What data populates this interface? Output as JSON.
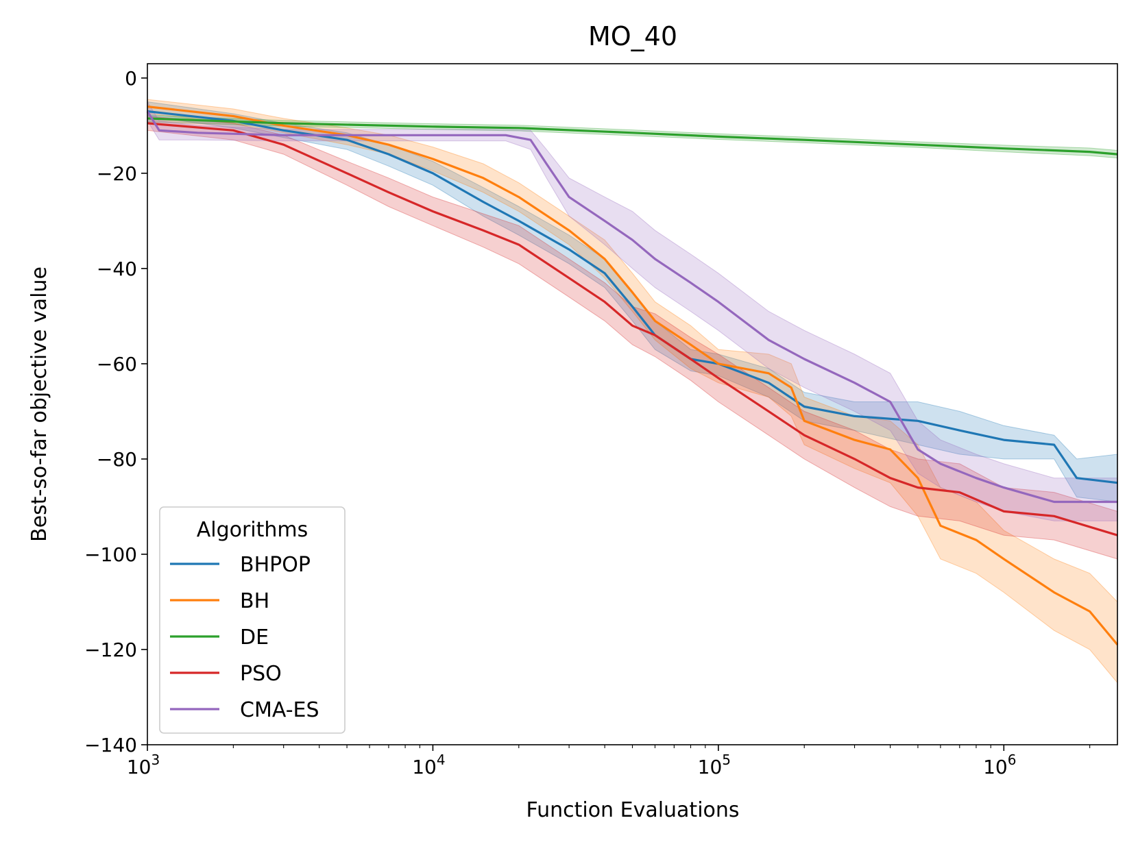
{
  "chart_data": {
    "type": "line",
    "title": "MO_40",
    "xlabel": "Function Evaluations",
    "ylabel": "Best-so-far objective value",
    "xscale": "log",
    "xlim": [
      1000,
      2500000
    ],
    "ylim": [
      -140,
      3
    ],
    "x_ticks": [
      {
        "value": 1000,
        "base": "10",
        "exp": "3"
      },
      {
        "value": 10000,
        "base": "10",
        "exp": "4"
      },
      {
        "value": 100000,
        "base": "10",
        "exp": "5"
      },
      {
        "value": 1000000,
        "base": "10",
        "exp": "6"
      }
    ],
    "y_ticks": [
      0,
      -20,
      -40,
      -60,
      -80,
      -100,
      -120,
      -140
    ],
    "y_tick_labels": [
      "0",
      "−20",
      "−40",
      "−60",
      "−80",
      "−100",
      "−120",
      "−140"
    ],
    "legend": {
      "title": "Algorithms",
      "position": "lower left"
    },
    "series": [
      {
        "name": "BHPOP",
        "color": "#1f77b4",
        "x": [
          1000,
          2000,
          3000,
          5000,
          7000,
          10000,
          15000,
          20000,
          30000,
          40000,
          50000,
          60000,
          80000,
          100000,
          150000,
          200000,
          300000,
          500000,
          700000,
          1000000,
          1500000,
          1800000,
          2500000
        ],
        "y": [
          -7,
          -9,
          -11,
          -13,
          -16,
          -20,
          -26,
          -30,
          -36,
          -41,
          -48,
          -54,
          -59,
          -60,
          -64,
          -69,
          -71,
          -72,
          -74,
          -76,
          -77,
          -84,
          -85
        ],
        "lower": [
          -8,
          -10.5,
          -12.5,
          -15,
          -18.5,
          -22.5,
          -29,
          -33,
          -39,
          -44,
          -51,
          -57,
          -61.5,
          -62.5,
          -67,
          -72,
          -74,
          -77,
          -79,
          -80,
          -80,
          -88,
          -89
        ],
        "upper": [
          -5,
          -7.5,
          -9.5,
          -11.5,
          -14,
          -17.5,
          -23,
          -27,
          -33,
          -38,
          -45,
          -51,
          -57,
          -58,
          -61,
          -66,
          -68,
          -68,
          -70,
          -73,
          -75,
          -80,
          -79
        ]
      },
      {
        "name": "BH",
        "color": "#ff7f0e",
        "x": [
          1000,
          2000,
          3000,
          5000,
          7000,
          10000,
          15000,
          20000,
          30000,
          40000,
          50000,
          60000,
          80000,
          100000,
          150000,
          180000,
          200000,
          300000,
          400000,
          500000,
          600000,
          800000,
          1000000,
          1500000,
          2000000,
          2500000
        ],
        "y": [
          -6,
          -8,
          -10,
          -12,
          -14,
          -17,
          -21,
          -25,
          -32,
          -38,
          -45,
          -51,
          -56,
          -60,
          -62,
          -65,
          -72,
          -76,
          -78,
          -84,
          -94,
          -97,
          -101,
          -108,
          -112,
          -119
        ],
        "lower": [
          -7.5,
          -9.5,
          -11.5,
          -14,
          -16,
          -19.5,
          -24,
          -28,
          -35,
          -42,
          -49,
          -55,
          -61,
          -64,
          -67,
          -71,
          -77,
          -82,
          -85,
          -92,
          -101,
          -104,
          -108,
          -116,
          -120,
          -127
        ],
        "upper": [
          -4.5,
          -6.5,
          -8.5,
          -10.5,
          -12,
          -14.5,
          -18,
          -22,
          -29,
          -34,
          -41,
          -47,
          -52,
          -57,
          -58,
          -60,
          -67,
          -71,
          -72,
          -77,
          -86,
          -89,
          -95,
          -101,
          -104,
          -110
        ]
      },
      {
        "name": "DE",
        "color": "#2ca02c",
        "x": [
          1000,
          3000,
          10000,
          20000,
          50000,
          100000,
          200000,
          500000,
          1000000,
          2000000,
          2500000
        ],
        "y": [
          -8.5,
          -9.5,
          -10.2,
          -10.5,
          -11.5,
          -12.3,
          -13,
          -14,
          -14.8,
          -15.5,
          -16
        ],
        "lower": [
          -9.2,
          -10.1,
          -10.8,
          -11.1,
          -12.1,
          -12.9,
          -13.6,
          -14.6,
          -15.5,
          -16.3,
          -16.8
        ],
        "upper": [
          -7.8,
          -8.9,
          -9.6,
          -9.9,
          -10.9,
          -11.7,
          -12.4,
          -13.4,
          -14.1,
          -14.7,
          -15.2
        ]
      },
      {
        "name": "PSO",
        "color": "#d62728",
        "x": [
          1000,
          2000,
          3000,
          5000,
          7000,
          10000,
          15000,
          20000,
          30000,
          40000,
          50000,
          60000,
          80000,
          100000,
          150000,
          200000,
          300000,
          400000,
          500000,
          700000,
          1000000,
          1500000,
          2500000
        ],
        "y": [
          -9.5,
          -11,
          -14,
          -20,
          -24,
          -28,
          -32,
          -35,
          -42,
          -47,
          -52,
          -54,
          -59,
          -63,
          -70,
          -75,
          -80,
          -84,
          -86,
          -87,
          -91,
          -92,
          -96
        ],
        "lower": [
          -11,
          -13,
          -16,
          -22.5,
          -27,
          -31,
          -35.5,
          -39,
          -46,
          -51,
          -56,
          -58.5,
          -63.5,
          -68,
          -75,
          -80,
          -86,
          -90,
          -92,
          -93,
          -96,
          -97,
          -101
        ],
        "upper": [
          -8,
          -9.5,
          -12,
          -17.5,
          -21,
          -25,
          -28.5,
          -31,
          -38,
          -43,
          -48,
          -49.5,
          -54.5,
          -58,
          -65,
          -70,
          -74,
          -78,
          -80,
          -81,
          -86,
          -87,
          -91
        ]
      },
      {
        "name": "CMA-ES",
        "color": "#9467bd",
        "x": [
          1000,
          1100,
          1500,
          3000,
          6000,
          10000,
          18000,
          22000,
          25000,
          30000,
          40000,
          50000,
          60000,
          80000,
          100000,
          150000,
          200000,
          300000,
          400000,
          500000,
          600000,
          800000,
          1000000,
          1500000,
          2500000
        ],
        "y": [
          -7,
          -11,
          -11.5,
          -12,
          -12,
          -12,
          -12,
          -13,
          -18,
          -25,
          -30,
          -34,
          -38,
          -43,
          -47,
          -55,
          -59,
          -64,
          -68,
          -78,
          -81,
          -84,
          -86,
          -89,
          -89
        ],
        "lower": [
          -9,
          -13,
          -13,
          -13.2,
          -13.2,
          -13.2,
          -13.2,
          -15,
          -21,
          -29,
          -35,
          -40,
          -44,
          -49,
          -53,
          -61,
          -65,
          -70,
          -74,
          -83,
          -86,
          -89,
          -91,
          -93,
          -93
        ],
        "upper": [
          -5,
          -9,
          -10,
          -10.8,
          -10.8,
          -10.8,
          -10.8,
          -11,
          -15,
          -21,
          -25,
          -28,
          -32,
          -37,
          -41,
          -49,
          -53,
          -58,
          -62,
          -72,
          -76,
          -79,
          -81,
          -84,
          -84
        ]
      }
    ]
  }
}
